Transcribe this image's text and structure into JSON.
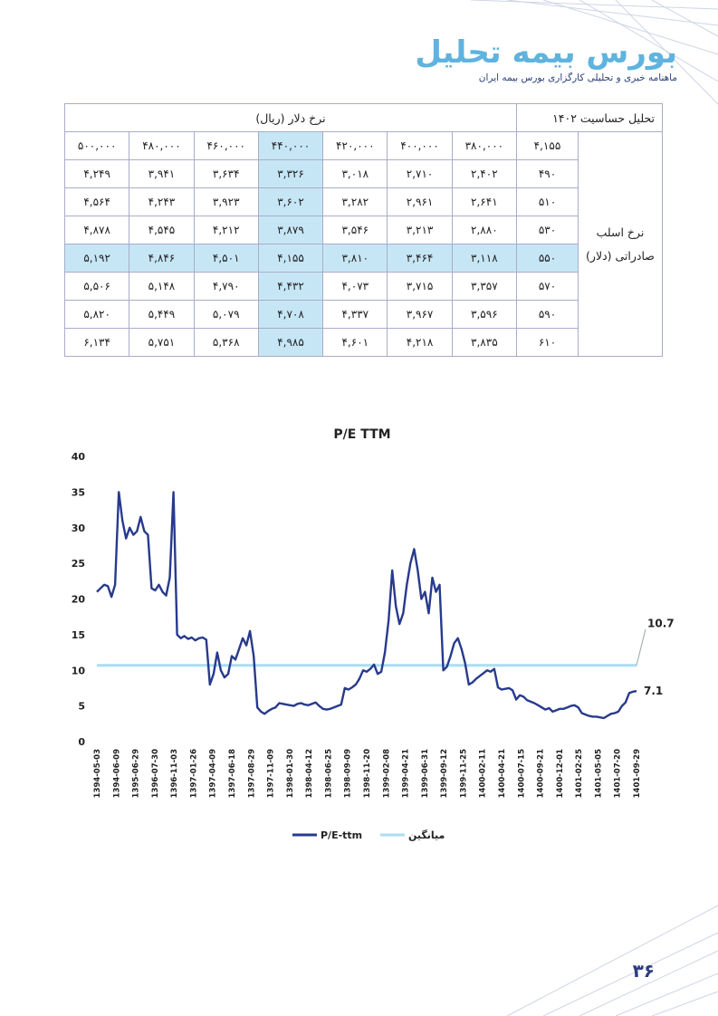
{
  "header": {
    "brand_title": "بورس بیمه تحلیل",
    "brand_subtitle": "ماهنامه خبری و تحلیلی کارگزاری بورس بیمه ایران"
  },
  "table": {
    "title": "تحلیل حساسیت ۱۴۰۲",
    "col_group_label": "نرخ دلار (ریال)",
    "row_group_label": "نرخ اسلب صادراتی (دلار)",
    "corner_value": "۴,۱۵۵",
    "columns": [
      "۳۸۰,۰۰۰",
      "۴۰۰,۰۰۰",
      "۴۲۰,۰۰۰",
      "۴۴۰,۰۰۰",
      "۴۶۰,۰۰۰",
      "۴۸۰,۰۰۰",
      "۵۰۰,۰۰۰"
    ],
    "rows": [
      {
        "label": "۴۹۰",
        "values": [
          "۲,۴۰۲",
          "۲,۷۱۰",
          "۳,۰۱۸",
          "۳,۳۲۶",
          "۳,۶۳۴",
          "۳,۹۴۱",
          "۴,۲۴۹"
        ]
      },
      {
        "label": "۵۱۰",
        "values": [
          "۲,۶۴۱",
          "۲,۹۶۱",
          "۳,۲۸۲",
          "۳,۶۰۲",
          "۳,۹۲۳",
          "۴,۲۴۳",
          "۴,۵۶۴"
        ]
      },
      {
        "label": "۵۳۰",
        "values": [
          "۲,۸۸۰",
          "۳,۲۱۳",
          "۳,۵۴۶",
          "۳,۸۷۹",
          "۴,۲۱۲",
          "۴,۵۴۵",
          "۴,۸۷۸"
        ]
      },
      {
        "label": "۵۵۰",
        "values": [
          "۳,۱۱۸",
          "۳,۴۶۴",
          "۳,۸۱۰",
          "۴,۱۵۵",
          "۴,۵۰۱",
          "۴,۸۴۶",
          "۵,۱۹۲"
        ]
      },
      {
        "label": "۵۷۰",
        "values": [
          "۳,۳۵۷",
          "۳,۷۱۵",
          "۴,۰۷۳",
          "۴,۴۳۲",
          "۴,۷۹۰",
          "۵,۱۴۸",
          "۵,۵۰۶"
        ]
      },
      {
        "label": "۵۹۰",
        "values": [
          "۳,۵۹۶",
          "۳,۹۶۷",
          "۴,۳۳۷",
          "۴,۷۰۸",
          "۵,۰۷۹",
          "۵,۴۴۹",
          "۵,۸۲۰"
        ]
      },
      {
        "label": "۶۱۰",
        "values": [
          "۳,۸۳۵",
          "۴,۲۱۸",
          "۴,۶۰۱",
          "۴,۹۸۵",
          "۵,۳۶۸",
          "۵,۷۵۱",
          "۶,۱۳۴"
        ]
      }
    ],
    "highlight_column_index": 3,
    "highlight_row_index": 3,
    "highlight_color": "#c6e6f6"
  },
  "chart_data": {
    "type": "line",
    "title": "P/E TTM",
    "xlabel": "",
    "ylabel": "",
    "ylim": [
      0,
      40
    ],
    "yticks": [
      "0",
      "5",
      "10",
      "15",
      "20",
      "25",
      "30",
      "35",
      "40"
    ],
    "grid": false,
    "legend_position": "bottom-center",
    "x_tick_labels": [
      "1394-05-03",
      "1394-06-09",
      "1395-06-29",
      "1396-07-30",
      "1396-11-03",
      "1397-01-26",
      "1397-04-09",
      "1397-06-18",
      "1397-08-29",
      "1397-11-09",
      "1398-01-30",
      "1398-04-12",
      "1398-06-25",
      "1398-09-09",
      "1398-11-20",
      "1399-02-08",
      "1399-04-21",
      "1399-06-31",
      "1399-09-12",
      "1399-11-25",
      "1400-02-11",
      "1400-04-21",
      "1400-07-15",
      "1400-09-21",
      "1400-12-01",
      "1401-02-25",
      "1401-05-05",
      "1401-07-20",
      "1401-09-29"
    ],
    "series": [
      {
        "name": "P/E-ttm",
        "color": "#283a8c",
        "values": [
          21.0,
          21.5,
          22.0,
          21.8,
          20.3,
          22.0,
          35.0,
          31.0,
          28.5,
          30.0,
          29.0,
          29.5,
          31.5,
          29.5,
          29.0,
          21.5,
          21.2,
          22.0,
          21.0,
          20.5,
          23.0,
          35.0,
          15.0,
          14.5,
          14.8,
          14.4,
          14.6,
          14.2,
          14.5,
          14.6,
          14.3,
          8.0,
          9.5,
          12.5,
          10.0,
          9.0,
          9.5,
          12.0,
          11.5,
          13.0,
          14.5,
          13.5,
          15.5,
          12.0,
          4.8,
          4.2,
          3.9,
          4.3,
          4.6,
          4.8,
          5.4,
          5.3,
          5.2,
          5.1,
          5.0,
          5.3,
          5.4,
          5.2,
          5.1,
          5.3,
          5.5,
          5.0,
          4.6,
          4.5,
          4.6,
          4.8,
          5.0,
          5.2,
          7.5,
          7.3,
          7.6,
          8.0,
          8.8,
          10.0,
          9.8,
          10.2,
          10.8,
          9.5,
          9.8,
          12.5,
          17.0,
          24.0,
          19.0,
          16.5,
          18.0,
          22.0,
          25.0,
          27.0,
          24.0,
          20.0,
          21.0,
          18.0,
          23.0,
          21.0,
          22.0,
          10.0,
          10.5,
          12.0,
          13.8,
          14.5,
          13.0,
          11.0,
          8.0,
          8.3,
          8.8,
          9.2,
          9.6,
          10.0,
          9.8,
          10.2,
          7.6,
          7.3,
          7.4,
          7.5,
          7.2,
          5.9,
          6.5,
          6.3,
          5.8,
          5.6,
          5.4,
          5.1,
          4.8,
          4.5,
          4.7,
          4.2,
          4.4,
          4.6,
          4.6,
          4.8,
          5.0,
          5.1,
          4.8,
          4.0,
          3.8,
          3.6,
          3.5,
          3.5,
          3.4,
          3.3,
          3.6,
          3.9,
          4.0,
          4.2,
          5.0,
          5.5,
          6.8,
          7.0,
          7.1
        ]
      },
      {
        "name": "میانگین",
        "color": "#a9ddf2",
        "values": [
          10.7
        ]
      }
    ],
    "annotations": [
      {
        "text": "10.7",
        "value": 10.7
      },
      {
        "text": "7.1",
        "value": 7.1
      }
    ]
  },
  "footer": {
    "page_number": "۳۶"
  }
}
